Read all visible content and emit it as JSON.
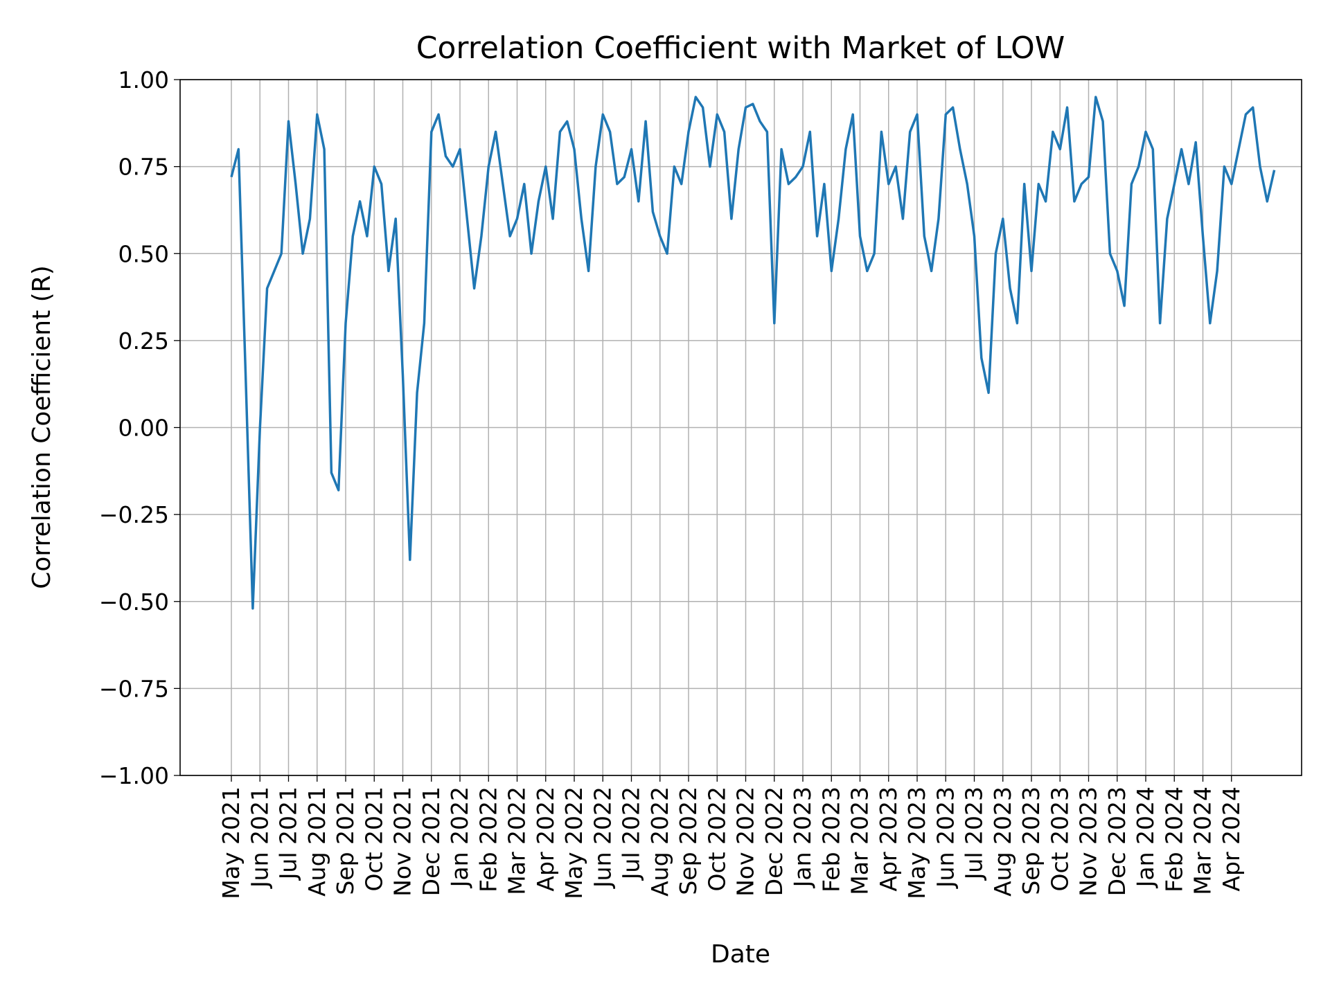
{
  "chart_data": {
    "type": "line",
    "title": "Correlation Coefficient with Market of LOW",
    "xlabel": "Date",
    "ylabel": "Correlation Coefficient (R)",
    "x": [
      "May 2021",
      "May 2021",
      "May 2021",
      "May 2021",
      "Jun 2021",
      "Jun 2021",
      "Jun 2021",
      "Jun 2021",
      "Jul 2021",
      "Jul 2021",
      "Jul 2021",
      "Jul 2021",
      "Aug 2021",
      "Aug 2021",
      "Aug 2021",
      "Aug 2021",
      "Sep 2021",
      "Sep 2021",
      "Sep 2021",
      "Sep 2021",
      "Oct 2021",
      "Oct 2021",
      "Oct 2021",
      "Oct 2021",
      "Nov 2021",
      "Nov 2021",
      "Nov 2021",
      "Nov 2021",
      "Dec 2021",
      "Dec 2021",
      "Dec 2021",
      "Dec 2021",
      "Jan 2022",
      "Jan 2022",
      "Jan 2022",
      "Jan 2022",
      "Feb 2022",
      "Feb 2022",
      "Feb 2022",
      "Feb 2022",
      "Mar 2022",
      "Mar 2022",
      "Mar 2022",
      "Mar 2022",
      "Apr 2022",
      "Apr 2022",
      "Apr 2022",
      "Apr 2022",
      "May 2022",
      "May 2022",
      "May 2022",
      "May 2022",
      "Jun 2022",
      "Jun 2022",
      "Jun 2022",
      "Jun 2022",
      "Jul 2022",
      "Jul 2022",
      "Jul 2022",
      "Jul 2022",
      "Aug 2022",
      "Aug 2022",
      "Aug 2022",
      "Aug 2022",
      "Sep 2022",
      "Sep 2022",
      "Sep 2022",
      "Sep 2022",
      "Oct 2022",
      "Oct 2022",
      "Oct 2022",
      "Oct 2022",
      "Nov 2022",
      "Nov 2022",
      "Nov 2022",
      "Nov 2022",
      "Dec 2022",
      "Dec 2022",
      "Dec 2022",
      "Dec 2022",
      "Jan 2023",
      "Jan 2023",
      "Jan 2023",
      "Jan 2023",
      "Feb 2023",
      "Feb 2023",
      "Feb 2023",
      "Feb 2023",
      "Mar 2023",
      "Mar 2023",
      "Mar 2023",
      "Mar 2023",
      "Apr 2023",
      "Apr 2023",
      "Apr 2023",
      "Apr 2023",
      "May 2023",
      "May 2023",
      "May 2023",
      "May 2023",
      "Jun 2023",
      "Jun 2023",
      "Jun 2023",
      "Jun 2023",
      "Jul 2023",
      "Jul 2023",
      "Jul 2023",
      "Jul 2023",
      "Aug 2023",
      "Aug 2023",
      "Aug 2023",
      "Aug 2023",
      "Sep 2023",
      "Sep 2023",
      "Sep 2023",
      "Sep 2023",
      "Oct 2023",
      "Oct 2023",
      "Oct 2023",
      "Oct 2023",
      "Nov 2023",
      "Nov 2023",
      "Nov 2023",
      "Nov 2023",
      "Dec 2023",
      "Dec 2023",
      "Dec 2023",
      "Dec 2023",
      "Jan 2024",
      "Jan 2024",
      "Jan 2024",
      "Jan 2024",
      "Feb 2024",
      "Feb 2024",
      "Feb 2024",
      "Feb 2024",
      "Mar 2024",
      "Mar 2024",
      "Mar 2024",
      "Mar 2024",
      "Apr 2024",
      "Apr 2024",
      "Apr 2024",
      "Apr 2024",
      "May 2024",
      "May 2024",
      "May 2024"
    ],
    "series": [
      {
        "color": "#1f77b4",
        "values": [
          0.72,
          0.8,
          0.15,
          -0.52,
          0.0,
          0.4,
          0.45,
          0.5,
          0.88,
          0.7,
          0.5,
          0.6,
          0.9,
          0.8,
          -0.13,
          -0.18,
          0.3,
          0.55,
          0.65,
          0.55,
          0.75,
          0.7,
          0.45,
          0.6,
          0.15,
          -0.38,
          0.1,
          0.3,
          0.85,
          0.9,
          0.78,
          0.75,
          0.8,
          0.6,
          0.4,
          0.55,
          0.75,
          0.85,
          0.7,
          0.55,
          0.6,
          0.7,
          0.5,
          0.65,
          0.75,
          0.6,
          0.85,
          0.88,
          0.8,
          0.6,
          0.45,
          0.75,
          0.9,
          0.85,
          0.7,
          0.72,
          0.8,
          0.65,
          0.88,
          0.62,
          0.55,
          0.5,
          0.75,
          0.7,
          0.85,
          0.95,
          0.92,
          0.75,
          0.9,
          0.85,
          0.6,
          0.8,
          0.92,
          0.93,
          0.88,
          0.85,
          0.3,
          0.8,
          0.7,
          0.72,
          0.75,
          0.85,
          0.55,
          0.7,
          0.45,
          0.6,
          0.8,
          0.9,
          0.55,
          0.45,
          0.5,
          0.85,
          0.7,
          0.75,
          0.6,
          0.85,
          0.9,
          0.55,
          0.45,
          0.6,
          0.9,
          0.92,
          0.8,
          0.7,
          0.55,
          0.2,
          0.1,
          0.5,
          0.6,
          0.4,
          0.3,
          0.7,
          0.45,
          0.7,
          0.65,
          0.85,
          0.8,
          0.92,
          0.65,
          0.7,
          0.72,
          0.95,
          0.88,
          0.5,
          0.45,
          0.35,
          0.7,
          0.75,
          0.85,
          0.8,
          0.3,
          0.6,
          0.7,
          0.8,
          0.7,
          0.82,
          0.55,
          0.3,
          0.45,
          0.75,
          0.7,
          0.8,
          0.9,
          0.92,
          0.75,
          0.65,
          0.74
        ]
      }
    ],
    "ylim": [
      -1,
      1
    ],
    "yticks": [
      {
        "value": -1,
        "label": "−1.00"
      },
      {
        "value": -0.75,
        "label": "−0.75"
      },
      {
        "value": -0.5,
        "label": "−0.50"
      },
      {
        "value": -0.25,
        "label": "−0.25"
      },
      {
        "value": 0,
        "label": "0.00"
      },
      {
        "value": 0.25,
        "label": "0.25"
      },
      {
        "value": 0.5,
        "label": "0.50"
      },
      {
        "value": 0.75,
        "label": "0.75"
      },
      {
        "value": 1,
        "label": "1.00"
      }
    ],
    "xticks": [
      "May 2021",
      "Jun 2021",
      "Jul 2021",
      "Aug 2021",
      "Sep 2021",
      "Oct 2021",
      "Nov 2021",
      "Dec 2021",
      "Jan 2022",
      "Feb 2022",
      "Mar 2022",
      "Apr 2022",
      "May 2022",
      "Jun 2022",
      "Jul 2022",
      "Aug 2022",
      "Sep 2022",
      "Oct 2022",
      "Nov 2022",
      "Dec 2022",
      "Jan 2023",
      "Feb 2023",
      "Mar 2023",
      "Apr 2023",
      "May 2023",
      "Jun 2023",
      "Jul 2023",
      "Aug 2023",
      "Sep 2023",
      "Oct 2023",
      "Nov 2023",
      "Dec 2023",
      "Jan 2024",
      "Feb 2024",
      "Mar 2024",
      "Apr 2024"
    ],
    "grid": true
  }
}
